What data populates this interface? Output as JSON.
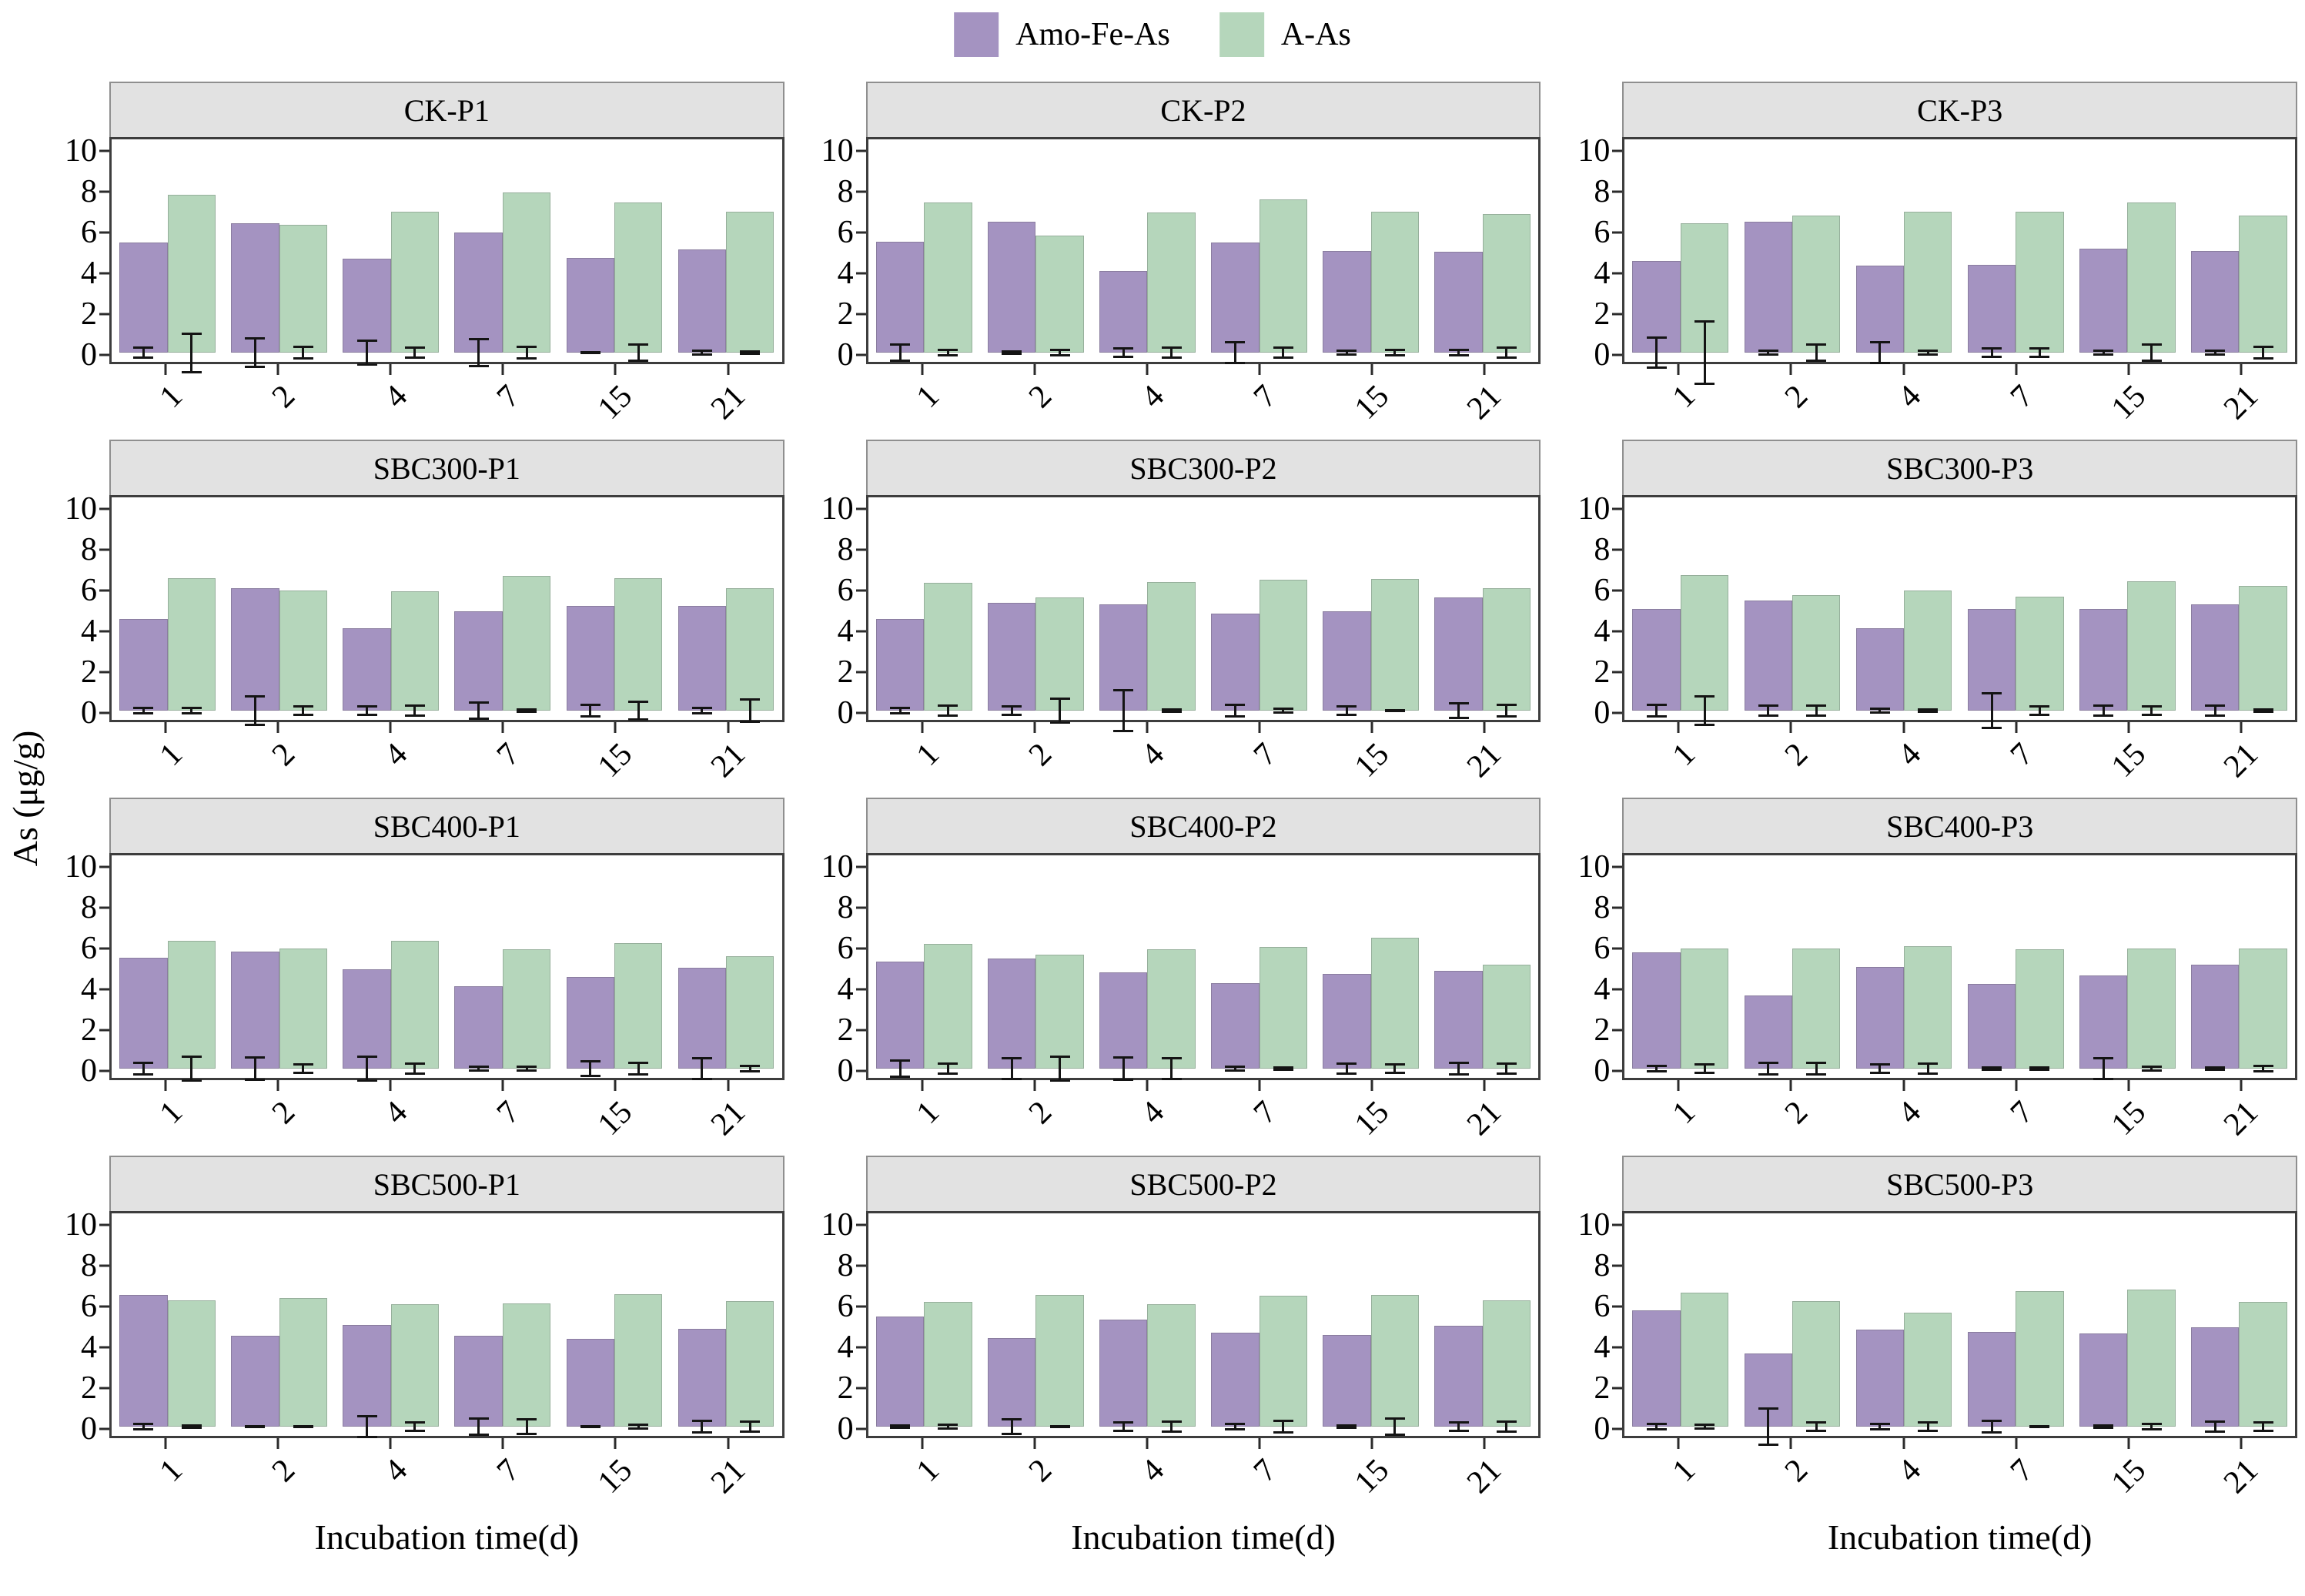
{
  "legend": {
    "items": [
      {
        "label": "Amo-Fe-As",
        "color": "#a493c1"
      },
      {
        "label": "A-As",
        "color": "#b5d6bb"
      }
    ]
  },
  "colors": {
    "amo_fe_as": "#a493c1",
    "a_as": "#b5d6bb",
    "panel_header_bg": "#e2e2e2",
    "panel_border": "#3d3d3d",
    "error_bar": "#141414"
  },
  "chart_data": {
    "type": "bar",
    "categories": [
      "1",
      "2",
      "4",
      "7",
      "15",
      "21"
    ],
    "xlabel": "Incubation time(d)",
    "ylabel": "As (μg/g)",
    "ylim": [
      0,
      10
    ],
    "yticks": [
      0,
      2,
      4,
      6,
      8,
      10
    ],
    "grid": false,
    "legend_position": "top-center",
    "series_names": [
      "Amo-Fe-As",
      "A-As"
    ],
    "facet_layout": {
      "rows": 4,
      "cols": 3
    },
    "panels": [
      {
        "title": "CK-P1",
        "series": [
          {
            "name": "Amo-Fe-As",
            "values": [
              5.4,
              6.35,
              4.6,
              5.9,
              4.65,
              5.05
            ],
            "errors": [
              0.3,
              0.75,
              0.65,
              0.7,
              0.08,
              0.15
            ]
          },
          {
            "name": "A-As",
            "values": [
              7.75,
              6.25,
              6.9,
              7.85,
              7.35,
              6.9
            ],
            "errors": [
              1.0,
              0.35,
              0.3,
              0.35,
              0.45,
              0.1
            ]
          }
        ]
      },
      {
        "title": "CK-P2",
        "series": [
          {
            "name": "Amo-Fe-As",
            "values": [
              5.45,
              6.4,
              4.0,
              5.4,
              5.0,
              4.95
            ],
            "errors": [
              0.45,
              0.1,
              0.25,
              0.55,
              0.15,
              0.2
            ]
          },
          {
            "name": "A-As",
            "values": [
              7.35,
              5.75,
              6.85,
              7.5,
              6.9,
              6.8
            ],
            "errors": [
              0.2,
              0.2,
              0.3,
              0.3,
              0.2,
              0.3
            ]
          }
        ]
      },
      {
        "title": "CK-P3",
        "series": [
          {
            "name": "Amo-Fe-As",
            "values": [
              4.5,
              6.4,
              4.25,
              4.3,
              5.1,
              5.0
            ],
            "errors": [
              0.8,
              0.15,
              0.55,
              0.25,
              0.15,
              0.15
            ]
          },
          {
            "name": "A-As",
            "values": [
              6.35,
              6.7,
              6.9,
              6.9,
              7.35,
              6.7
            ],
            "errors": [
              1.6,
              0.45,
              0.15,
              0.25,
              0.45,
              0.35
            ]
          }
        ]
      },
      {
        "title": "SBC300-P1",
        "series": [
          {
            "name": "Amo-Fe-As",
            "values": [
              4.5,
              6.0,
              4.05,
              4.85,
              5.15,
              5.15
            ],
            "errors": [
              0.2,
              0.75,
              0.25,
              0.45,
              0.35,
              0.2
            ]
          },
          {
            "name": "A-As",
            "values": [
              6.5,
              5.9,
              5.85,
              6.6,
              6.5,
              6.0
            ],
            "errors": [
              0.2,
              0.25,
              0.3,
              0.1,
              0.5,
              0.6
            ]
          }
        ]
      },
      {
        "title": "SBC300-P2",
        "series": [
          {
            "name": "Amo-Fe-As",
            "values": [
              4.5,
              5.3,
              5.2,
              4.75,
              4.85,
              5.55
            ],
            "errors": [
              0.2,
              0.25,
              1.05,
              0.35,
              0.25,
              0.4
            ]
          },
          {
            "name": "A-As",
            "values": [
              6.25,
              5.55,
              6.3,
              6.4,
              6.45,
              6.0
            ],
            "errors": [
              0.3,
              0.65,
              0.1,
              0.15,
              0.05,
              0.35
            ]
          }
        ]
      },
      {
        "title": "SBC300-P3",
        "series": [
          {
            "name": "Amo-Fe-As",
            "values": [
              5.0,
              5.4,
              4.05,
              5.0,
              5.0,
              5.2
            ],
            "errors": [
              0.35,
              0.3,
              0.15,
              0.9,
              0.3,
              0.3
            ]
          },
          {
            "name": "A-As",
            "values": [
              6.65,
              5.65,
              5.9,
              5.6,
              6.35,
              6.1
            ],
            "errors": [
              0.75,
              0.3,
              0.12,
              0.25,
              0.25,
              0.1
            ]
          }
        ]
      },
      {
        "title": "SBC400-P1",
        "series": [
          {
            "name": "Amo-Fe-As",
            "values": [
              5.45,
              5.75,
              4.85,
              4.05,
              4.5,
              4.95
            ],
            "errors": [
              0.35,
              0.6,
              0.65,
              0.15,
              0.4,
              0.55
            ]
          },
          {
            "name": "A-As",
            "values": [
              6.25,
              5.9,
              6.25,
              5.85,
              6.15,
              5.5
            ],
            "errors": [
              0.65,
              0.25,
              0.3,
              0.15,
              0.35,
              0.2
            ]
          }
        ]
      },
      {
        "title": "SBC400-P2",
        "series": [
          {
            "name": "Amo-Fe-As",
            "values": [
              5.25,
              5.4,
              4.7,
              4.2,
              4.65,
              4.8
            ],
            "errors": [
              0.45,
              0.55,
              0.6,
              0.15,
              0.3,
              0.35
            ]
          },
          {
            "name": "A-As",
            "values": [
              6.1,
              5.6,
              5.85,
              5.95,
              6.4,
              5.1
            ],
            "errors": [
              0.3,
              0.65,
              0.55,
              0.1,
              0.25,
              0.3
            ]
          }
        ]
      },
      {
        "title": "SBC400-P3",
        "series": [
          {
            "name": "Amo-Fe-As",
            "values": [
              5.7,
              3.6,
              5.0,
              4.15,
              4.55,
              5.1
            ],
            "errors": [
              0.2,
              0.35,
              0.25,
              0.1,
              0.55,
              0.1
            ]
          },
          {
            "name": "A-As",
            "values": [
              5.9,
              5.9,
              6.0,
              5.85,
              5.9,
              5.9
            ],
            "errors": [
              0.25,
              0.35,
              0.3,
              0.1,
              0.15,
              0.2
            ]
          }
        ]
      },
      {
        "title": "SBC500-P1",
        "series": [
          {
            "name": "Amo-Fe-As",
            "values": [
              6.45,
              4.45,
              5.0,
              4.45,
              4.3,
              4.8
            ],
            "errors": [
              0.2,
              0.07,
              0.55,
              0.45,
              0.08,
              0.35
            ]
          },
          {
            "name": "A-As",
            "values": [
              6.2,
              6.3,
              6.0,
              6.05,
              6.5,
              6.15
            ],
            "errors": [
              0.1,
              0.06,
              0.25,
              0.4,
              0.15,
              0.3
            ]
          }
        ]
      },
      {
        "title": "SBC500-P2",
        "series": [
          {
            "name": "Amo-Fe-As",
            "values": [
              5.4,
              4.35,
              5.25,
              4.6,
              4.5,
              4.95
            ],
            "errors": [
              0.1,
              0.4,
              0.25,
              0.2,
              0.1,
              0.25
            ]
          },
          {
            "name": "A-As",
            "values": [
              6.1,
              6.45,
              6.0,
              6.4,
              6.45,
              6.2
            ],
            "errors": [
              0.15,
              0.05,
              0.3,
              0.35,
              0.45,
              0.3
            ]
          }
        ]
      },
      {
        "title": "SBC500-P3",
        "series": [
          {
            "name": "Amo-Fe-As",
            "values": [
              5.7,
              3.6,
              4.75,
              4.65,
              4.55,
              4.85
            ],
            "errors": [
              0.2,
              0.95,
              0.2,
              0.35,
              0.1,
              0.3
            ]
          },
          {
            "name": "A-As",
            "values": [
              6.55,
              6.15,
              5.6,
              6.65,
              6.7,
              6.1
            ],
            "errors": [
              0.15,
              0.25,
              0.25,
              0.08,
              0.18,
              0.25
            ]
          }
        ]
      }
    ]
  }
}
